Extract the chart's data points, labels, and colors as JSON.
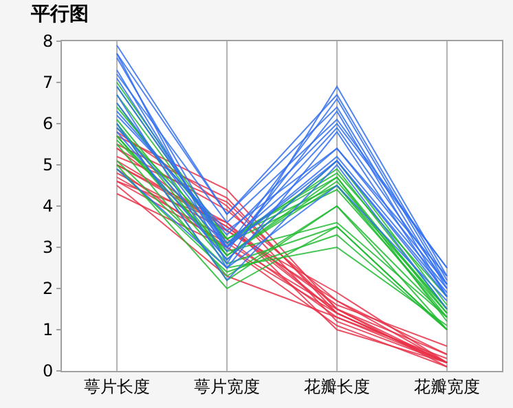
{
  "chart_data": {
    "type": "line",
    "title": "平行图",
    "categories": [
      "萼片长度",
      "萼片宽度",
      "花瓣长度",
      "花瓣宽度"
    ],
    "ylim": [
      0,
      8
    ],
    "yticks": [
      0,
      1,
      2,
      3,
      4,
      5,
      6,
      7,
      8
    ],
    "grid": "x",
    "marker": "none",
    "line_style": "solid",
    "series": [
      {
        "color": "#e8334a",
        "values": [
          5.1,
          3.5,
          1.4,
          0.2
        ]
      },
      {
        "color": "#e8334a",
        "values": [
          4.9,
          3.0,
          1.4,
          0.2
        ]
      },
      {
        "color": "#e8334a",
        "values": [
          4.7,
          3.2,
          1.3,
          0.2
        ]
      },
      {
        "color": "#e8334a",
        "values": [
          4.6,
          3.1,
          1.5,
          0.2
        ]
      },
      {
        "color": "#e8334a",
        "values": [
          5.0,
          3.6,
          1.4,
          0.2
        ]
      },
      {
        "color": "#e8334a",
        "values": [
          5.4,
          3.9,
          1.7,
          0.4
        ]
      },
      {
        "color": "#e8334a",
        "values": [
          4.3,
          3.0,
          1.1,
          0.1
        ]
      },
      {
        "color": "#e8334a",
        "values": [
          5.8,
          4.0,
          1.2,
          0.2
        ]
      },
      {
        "color": "#e8334a",
        "values": [
          5.7,
          4.4,
          1.5,
          0.4
        ]
      },
      {
        "color": "#e8334a",
        "values": [
          5.4,
          3.4,
          1.7,
          0.2
        ]
      },
      {
        "color": "#e8334a",
        "values": [
          4.8,
          3.4,
          1.9,
          0.2
        ]
      },
      {
        "color": "#e8334a",
        "values": [
          5.2,
          4.1,
          1.5,
          0.1
        ]
      },
      {
        "color": "#e8334a",
        "values": [
          5.5,
          4.2,
          1.4,
          0.2
        ]
      },
      {
        "color": "#e8334a",
        "values": [
          4.5,
          2.3,
          1.3,
          0.3
        ]
      },
      {
        "color": "#e8334a",
        "values": [
          5.0,
          3.5,
          1.6,
          0.6
        ]
      },
      {
        "color": "#e8334a",
        "values": [
          4.6,
          3.6,
          1.0,
          0.2
        ]
      },
      {
        "color": "#22bb33",
        "values": [
          7.0,
          3.2,
          4.7,
          1.4
        ]
      },
      {
        "color": "#22bb33",
        "values": [
          6.4,
          3.2,
          4.5,
          1.5
        ]
      },
      {
        "color": "#22bb33",
        "values": [
          6.9,
          3.1,
          4.9,
          1.5
        ]
      },
      {
        "color": "#22bb33",
        "values": [
          5.5,
          2.3,
          4.0,
          1.3
        ]
      },
      {
        "color": "#22bb33",
        "values": [
          6.5,
          2.8,
          4.6,
          1.5
        ]
      },
      {
        "color": "#22bb33",
        "values": [
          5.7,
          2.8,
          4.5,
          1.3
        ]
      },
      {
        "color": "#22bb33",
        "values": [
          4.9,
          2.4,
          3.3,
          1.0
        ]
      },
      {
        "color": "#22bb33",
        "values": [
          5.0,
          2.0,
          3.5,
          1.0
        ]
      },
      {
        "color": "#22bb33",
        "values": [
          5.1,
          2.5,
          3.0,
          1.1
        ]
      },
      {
        "color": "#22bb33",
        "values": [
          6.7,
          3.1,
          4.4,
          1.4
        ]
      },
      {
        "color": "#22bb33",
        "values": [
          5.6,
          2.9,
          3.6,
          1.3
        ]
      },
      {
        "color": "#22bb33",
        "values": [
          6.0,
          2.2,
          4.0,
          1.0
        ]
      },
      {
        "color": "#22bb33",
        "values": [
          6.1,
          2.8,
          4.7,
          1.2
        ]
      },
      {
        "color": "#22bb33",
        "values": [
          5.9,
          3.2,
          4.8,
          1.8
        ]
      },
      {
        "color": "#22bb33",
        "values": [
          6.0,
          2.7,
          5.1,
          1.6
        ]
      },
      {
        "color": "#22bb33",
        "values": [
          5.7,
          2.6,
          3.5,
          1.0
        ]
      },
      {
        "color": "#3370f0",
        "values": [
          6.3,
          3.3,
          6.0,
          2.5
        ]
      },
      {
        "color": "#3370f0",
        "values": [
          5.8,
          2.7,
          5.1,
          1.9
        ]
      },
      {
        "color": "#3370f0",
        "values": [
          7.1,
          3.0,
          5.9,
          2.1
        ]
      },
      {
        "color": "#3370f0",
        "values": [
          7.6,
          3.0,
          6.6,
          2.1
        ]
      },
      {
        "color": "#3370f0",
        "values": [
          4.9,
          2.5,
          4.5,
          1.7
        ]
      },
      {
        "color": "#3370f0",
        "values": [
          7.3,
          2.9,
          6.3,
          1.8
        ]
      },
      {
        "color": "#3370f0",
        "values": [
          7.2,
          3.6,
          6.1,
          2.5
        ]
      },
      {
        "color": "#3370f0",
        "values": [
          7.7,
          3.8,
          6.7,
          2.2
        ]
      },
      {
        "color": "#3370f0",
        "values": [
          7.7,
          2.6,
          6.9,
          2.3
        ]
      },
      {
        "color": "#3370f0",
        "values": [
          6.0,
          2.2,
          5.0,
          1.5
        ]
      },
      {
        "color": "#3370f0",
        "values": [
          7.9,
          3.8,
          6.4,
          2.0
        ]
      },
      {
        "color": "#3370f0",
        "values": [
          6.5,
          3.0,
          5.2,
          2.0
        ]
      },
      {
        "color": "#3370f0",
        "values": [
          6.2,
          3.4,
          5.4,
          2.3
        ]
      },
      {
        "color": "#3370f0",
        "values": [
          5.9,
          3.0,
          5.1,
          1.8
        ]
      },
      {
        "color": "#3370f0",
        "values": [
          6.9,
          3.1,
          5.4,
          2.1
        ]
      },
      {
        "color": "#3370f0",
        "values": [
          6.7,
          2.5,
          5.8,
          1.8
        ]
      }
    ]
  }
}
